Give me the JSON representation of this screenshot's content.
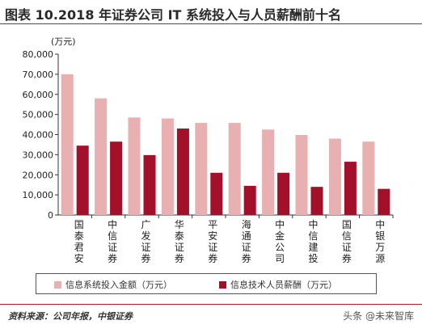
{
  "header": {
    "title": "图表 10.2018 年证券公司 IT 系统投入与人员薪酬前十名"
  },
  "chart_data": {
    "type": "bar",
    "unit_label": "(万元)",
    "categories": [
      "国泰君安",
      "中信证券",
      "广发证券",
      "华泰证券",
      "平安证券",
      "海通证券",
      "中金公司",
      "中信建投",
      "国信证券",
      "中银万源"
    ],
    "series": [
      {
        "name": "信息系统投入金额（万元）",
        "color": "#e8b0b0",
        "values": [
          70000,
          58000,
          48500,
          48000,
          45800,
          45800,
          42500,
          39800,
          38000,
          36500
        ]
      },
      {
        "name": "信息技术人员薪酬（万元）",
        "color": "#a3102a",
        "values": [
          34500,
          36500,
          29800,
          43000,
          21000,
          14500,
          21000,
          14000,
          26500,
          13000
        ]
      }
    ],
    "ylim": [
      0,
      80000
    ],
    "yticks": [
      "0",
      "10,000",
      "20,000",
      "30,000",
      "40,000",
      "50,000",
      "60,000",
      "70,000",
      "80,000"
    ],
    "grid": false,
    "legend_position": "bottom"
  },
  "footer": {
    "source": "资料来源：公司年报，中银证券",
    "watermark": "头条 @未来智库"
  }
}
